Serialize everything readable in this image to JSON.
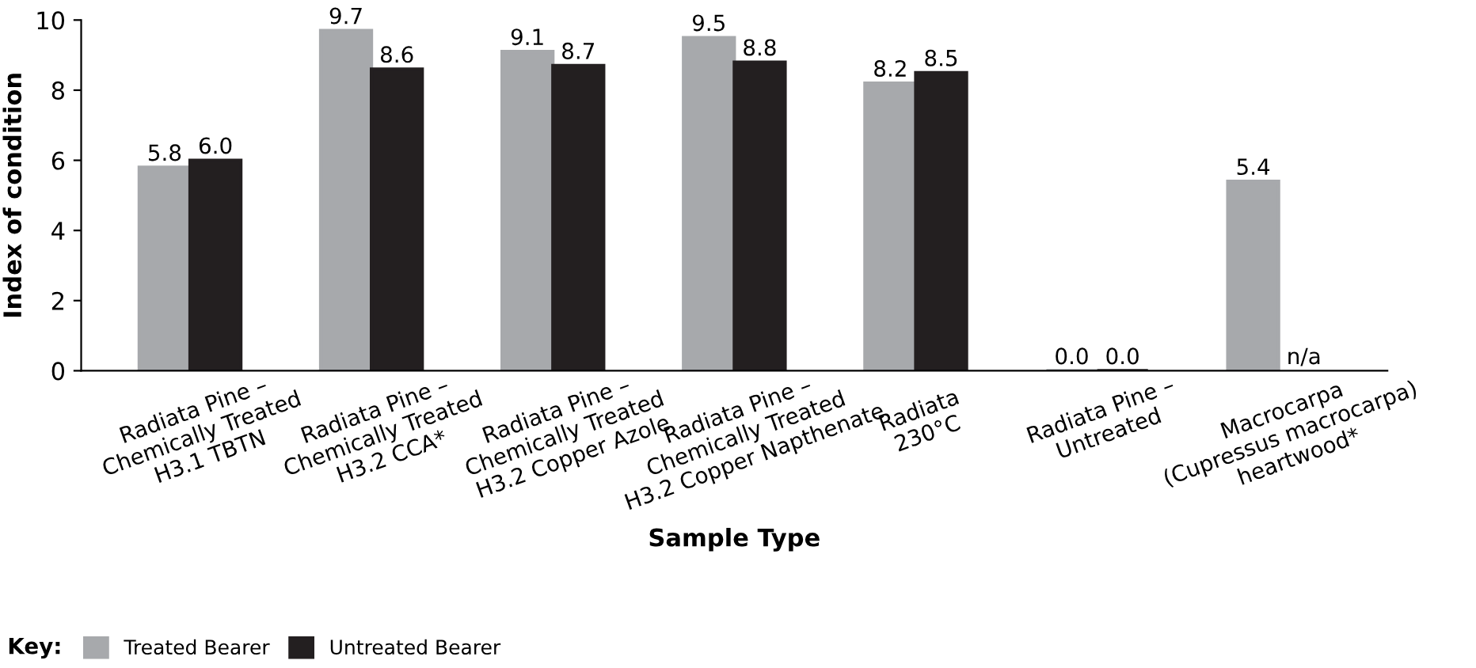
{
  "chart_data": {
    "type": "bar",
    "xlabel": "Sample Type",
    "ylabel": "Index of condition",
    "legend_title": "Key:",
    "categories": [
      "Radiata Pine –\nChemically Treated\nH3.1 TBTN",
      "Radiata Pine –\nChemically Treated\nH3.2 CCA*",
      "Radiata Pine –\nChemically Treated\nH3.2 Copper Azole",
      "Radiata Pine –\nChemically Treated\nH3.2 Copper Napthenate",
      "Radiata\n230°C",
      "Radiata Pine –\nUntreated",
      "Macrocarpa\n(Cupressus macrocarpa)\nheartwood*"
    ],
    "series": [
      {
        "name": "Treated Bearer",
        "color": "#a7a9ac",
        "values": [
          5.8,
          9.7,
          9.1,
          9.5,
          8.2,
          0.0,
          5.4
        ],
        "value_labels": [
          "5.8",
          "9.7",
          "9.1",
          "9.5",
          "8.2",
          "0.0",
          "5.4"
        ]
      },
      {
        "name": "Untreated Bearer",
        "color": "#231f20",
        "values": [
          6.0,
          8.6,
          8.7,
          8.8,
          8.5,
          0.0,
          null
        ],
        "value_labels": [
          "6.0",
          "8.6",
          "8.7",
          "8.8",
          "8.5",
          "0.0",
          "n/a"
        ]
      }
    ],
    "ylim": [
      0,
      10
    ],
    "yticks": [
      0,
      2,
      4,
      6,
      8,
      10
    ],
    "grid": false,
    "legend": "bottom left"
  }
}
